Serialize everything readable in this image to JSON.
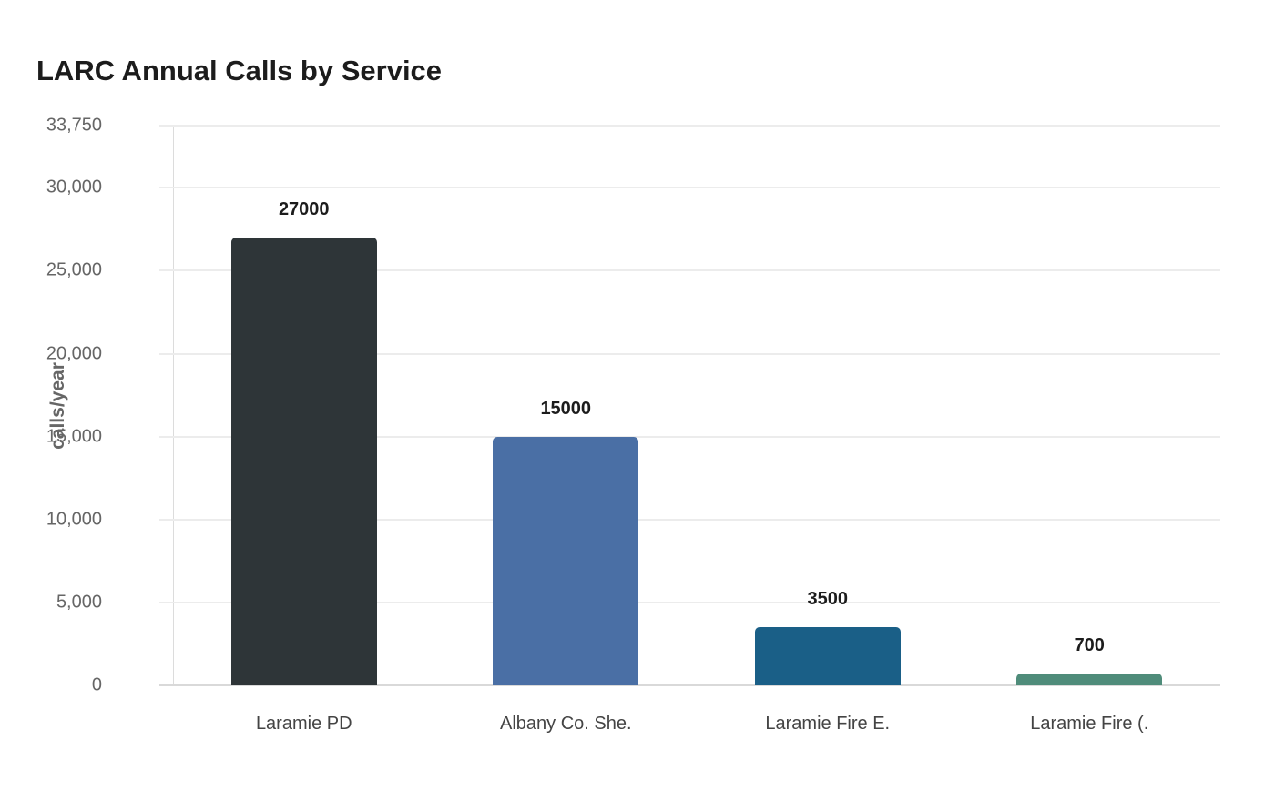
{
  "chart_data": {
    "type": "bar",
    "title": "LARC Annual Calls by Service",
    "xlabel": "",
    "ylabel": "calls/year",
    "categories": [
      "Laramie PD",
      "Albany Co. She.",
      "Laramie Fire E.",
      "Laramie Fire (."
    ],
    "values": [
      27000,
      15000,
      3500,
      700
    ],
    "data_labels": [
      "27000",
      "15000",
      "3500",
      "700"
    ],
    "colors": [
      "#2e3538",
      "#4a6fa5",
      "#1a5f87",
      "#4f8c7a"
    ],
    "ylim": [
      0,
      33750
    ],
    "yticks": [
      0,
      5000,
      10000,
      15000,
      20000,
      25000,
      30000,
      33750
    ],
    "ytick_labels": [
      "0",
      "5,000",
      "10,000",
      "15,000",
      "20,000",
      "25,000",
      "30,000",
      "33,750"
    ],
    "grid": true,
    "legend": null
  }
}
